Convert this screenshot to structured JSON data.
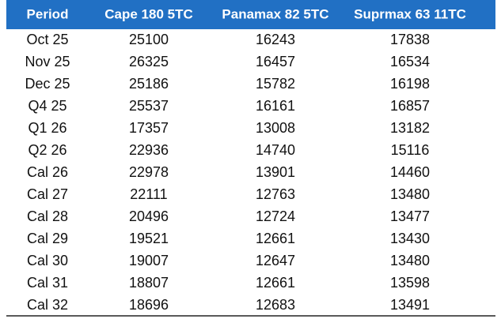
{
  "table": {
    "columns": [
      "Period",
      "Cape 180 5TC",
      "Panamax 82 5TC",
      "Suprmax 63 11TC"
    ],
    "rows": [
      [
        "Oct 25",
        25100,
        16243,
        17838
      ],
      [
        "Nov 25",
        26325,
        16457,
        16534
      ],
      [
        "Dec 25",
        25186,
        15782,
        16198
      ],
      [
        "Q4 25",
        25537,
        16161,
        16857
      ],
      [
        "Q1 26",
        17357,
        13008,
        13182
      ],
      [
        "Q2 26",
        22936,
        14740,
        15116
      ],
      [
        "Cal 26",
        22978,
        13901,
        14460
      ],
      [
        "Cal 27",
        22111,
        12763,
        13480
      ],
      [
        "Cal 28",
        20496,
        12724,
        13477
      ],
      [
        "Cal 29",
        19521,
        12661,
        13430
      ],
      [
        "Cal 30",
        19007,
        12647,
        13480
      ],
      [
        "Cal 31",
        18807,
        12661,
        13598
      ],
      [
        "Cal 32",
        18696,
        12683,
        13491
      ]
    ]
  }
}
